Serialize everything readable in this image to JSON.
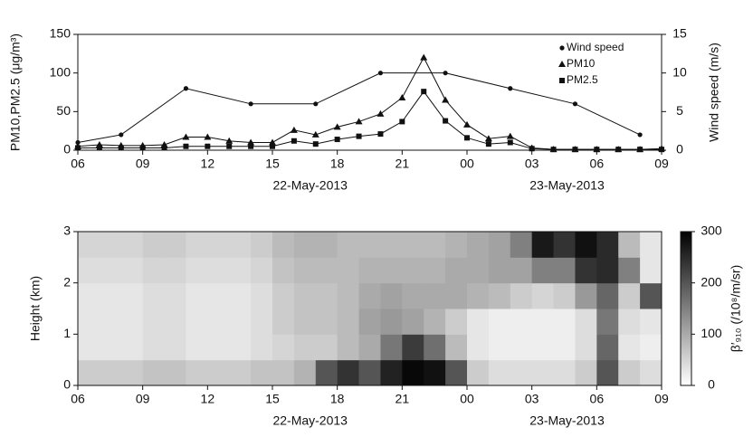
{
  "chart_data": [
    {
      "type": "line",
      "ylabel": "PM10,PM2.5 (μg/m³)",
      "y2label": "Wind speed (m/s)",
      "date_labels": [
        "22-May-2013",
        "23-May-2013"
      ],
      "xlim": [
        6,
        33
      ],
      "xticks": [
        {
          "value": 6,
          "label": "06"
        },
        {
          "value": 9,
          "label": "09"
        },
        12,
        15,
        18,
        21,
        {
          "value": 24,
          "label": "00"
        },
        {
          "value": 27,
          "label": "03"
        },
        {
          "value": 30,
          "label": "06"
        },
        {
          "value": 33,
          "label": "09"
        }
      ],
      "ylim": [
        0,
        150
      ],
      "yticks": [
        0,
        50,
        100,
        150
      ],
      "y2lim": [
        0,
        15
      ],
      "y2ticks": [
        0,
        5,
        10,
        15
      ],
      "legend": "upper right",
      "series": [
        {
          "name": "Wind speed",
          "axis": "y2",
          "marker": "circle",
          "color": "#111111",
          "x": [
            6,
            8,
            11,
            14,
            17,
            20,
            23,
            26,
            29,
            32
          ],
          "values": [
            1,
            2,
            8,
            6,
            6,
            10,
            10,
            8,
            6,
            2
          ]
        },
        {
          "name": "PM10",
          "marker": "triangle",
          "color": "#111111",
          "x": [
            6,
            7,
            8,
            9,
            10,
            11,
            12,
            13,
            14,
            15,
            16,
            17,
            18,
            19,
            20,
            21,
            22,
            23,
            24,
            25,
            26,
            27,
            28,
            29,
            30,
            31,
            32,
            33
          ],
          "values": [
            5,
            7,
            6,
            6,
            7,
            17,
            17,
            12,
            10,
            10,
            26,
            20,
            30,
            37,
            47,
            68,
            120,
            65,
            33,
            15,
            18,
            3,
            1,
            1,
            1,
            1,
            1,
            2
          ]
        },
        {
          "name": "PM2.5",
          "marker": "square",
          "color": "#111111",
          "x": [
            6,
            7,
            8,
            9,
            10,
            11,
            12,
            13,
            14,
            15,
            16,
            17,
            18,
            19,
            20,
            21,
            22,
            23,
            24,
            25,
            26,
            27,
            28,
            29,
            30,
            31,
            32,
            33
          ],
          "values": [
            3,
            3,
            3,
            3,
            3,
            5,
            5,
            5,
            5,
            5,
            12,
            8,
            14,
            18,
            21,
            37,
            76,
            38,
            16,
            8,
            10,
            2,
            1,
            1,
            1,
            1,
            1,
            1
          ]
        }
      ]
    },
    {
      "type": "heatmap",
      "ylabel": "Height (km)",
      "clabel": "β′₉₁₀ (/10⁸/m/sr)",
      "date_labels": [
        "22-May-2013",
        "23-May-2013"
      ],
      "xlim": [
        6,
        33
      ],
      "xticks": [
        {
          "value": 6,
          "label": "06"
        },
        {
          "value": 9,
          "label": "09"
        },
        12,
        15,
        18,
        21,
        {
          "value": 24,
          "label": "00"
        },
        {
          "value": 27,
          "label": "03"
        },
        {
          "value": 30,
          "label": "06"
        },
        {
          "value": 33,
          "label": "09"
        }
      ],
      "ylim": [
        0,
        3
      ],
      "yticks": [
        0,
        1,
        2,
        3
      ],
      "clim": [
        0,
        300
      ],
      "cticks": [
        0,
        100,
        200,
        300
      ],
      "x_edges": [
        6,
        7,
        8,
        9,
        10,
        11,
        12,
        13,
        14,
        15,
        16,
        17,
        18,
        19,
        20,
        21,
        22,
        23,
        24,
        25,
        26,
        27,
        28,
        29,
        30,
        31,
        32,
        33
      ],
      "y_edges": [
        0,
        0.5,
        1,
        1.5,
        2,
        2.5,
        3
      ],
      "z": [
        [
          60,
          60,
          60,
          70,
          70,
          60,
          60,
          60,
          70,
          70,
          90,
          200,
          240,
          200,
          260,
          290,
          280,
          200,
          60,
          40,
          40,
          40,
          40,
          60,
          200,
          60,
          40
        ],
        [
          30,
          30,
          30,
          40,
          40,
          30,
          30,
          30,
          40,
          50,
          60,
          60,
          80,
          100,
          160,
          230,
          170,
          80,
          30,
          20,
          20,
          20,
          20,
          40,
          180,
          30,
          20
        ],
        [
          30,
          30,
          30,
          40,
          40,
          30,
          30,
          30,
          40,
          60,
          70,
          70,
          80,
          110,
          120,
          110,
          90,
          60,
          30,
          20,
          20,
          20,
          20,
          40,
          160,
          40,
          30
        ],
        [
          30,
          30,
          30,
          40,
          40,
          30,
          30,
          30,
          40,
          60,
          70,
          70,
          80,
          100,
          110,
          100,
          100,
          100,
          90,
          80,
          60,
          50,
          60,
          120,
          180,
          60,
          200
        ],
        [
          40,
          40,
          40,
          50,
          50,
          40,
          40,
          40,
          50,
          70,
          80,
          80,
          80,
          90,
          90,
          90,
          90,
          100,
          100,
          110,
          110,
          150,
          150,
          240,
          250,
          150,
          30
        ],
        [
          50,
          50,
          50,
          60,
          60,
          50,
          50,
          50,
          60,
          80,
          90,
          90,
          80,
          80,
          80,
          80,
          80,
          90,
          100,
          110,
          150,
          270,
          240,
          280,
          250,
          80,
          30
        ]
      ]
    }
  ]
}
